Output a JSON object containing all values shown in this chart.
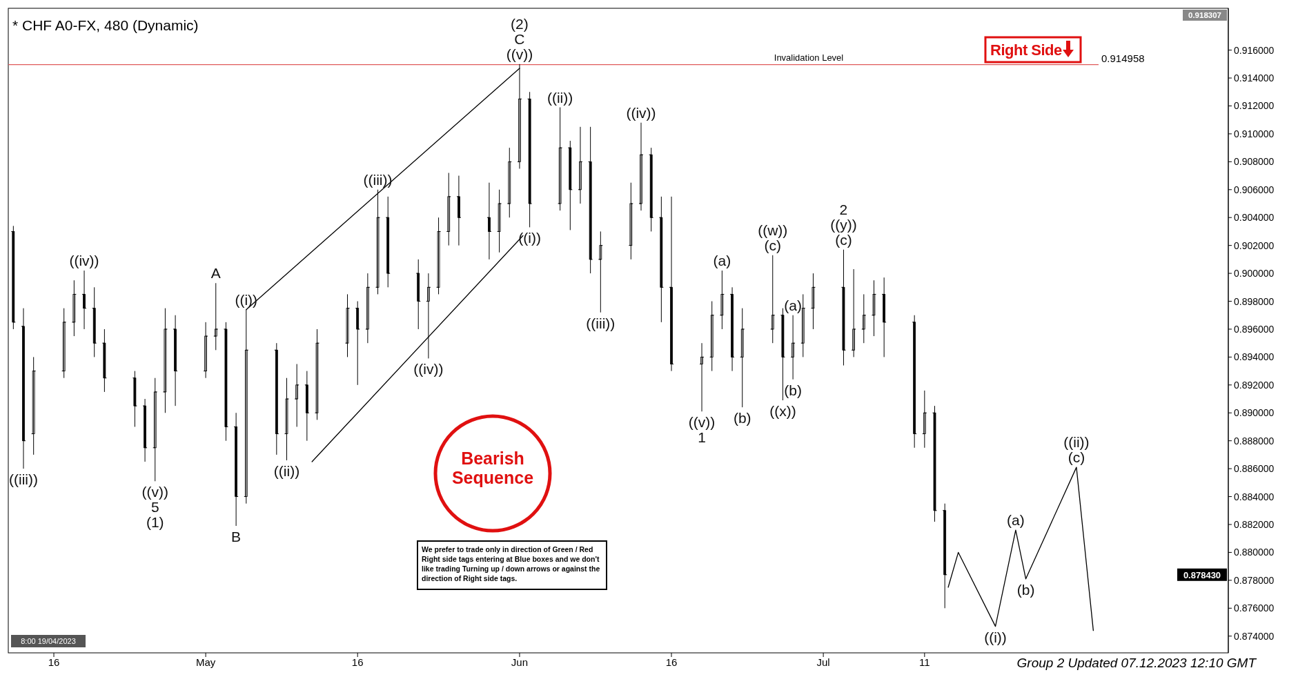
{
  "chart_data": {
    "type": "candlestick",
    "title": "* CHF A0-FX, 480 (Dynamic)",
    "x": [
      "2023-04-12",
      "2023-04-13",
      "2023-04-14",
      "2023-04-17",
      "2023-04-18",
      "2023-04-19",
      "2023-04-20",
      "2023-04-21",
      "2023-04-24",
      "2023-04-25",
      "2023-04-26",
      "2023-04-27",
      "2023-04-28",
      "2023-05-01",
      "2023-05-02",
      "2023-05-03",
      "2023-05-04",
      "2023-05-05",
      "2023-05-08",
      "2023-05-09",
      "2023-05-10",
      "2023-05-11",
      "2023-05-12",
      "2023-05-15",
      "2023-05-16",
      "2023-05-17",
      "2023-05-18",
      "2023-05-19",
      "2023-05-22",
      "2023-05-23",
      "2023-05-24",
      "2023-05-25",
      "2023-05-26",
      "2023-05-29",
      "2023-05-30",
      "2023-05-31",
      "2023-06-01",
      "2023-06-02",
      "2023-06-05",
      "2023-06-06",
      "2023-06-07",
      "2023-06-08",
      "2023-06-09",
      "2023-06-12",
      "2023-06-13",
      "2023-06-14",
      "2023-06-15",
      "2023-06-16",
      "2023-06-19",
      "2023-06-20",
      "2023-06-21",
      "2023-06-22",
      "2023-06-23",
      "2023-06-26",
      "2023-06-27",
      "2023-06-28",
      "2023-06-29",
      "2023-06-30",
      "2023-07-03",
      "2023-07-04",
      "2023-07-05",
      "2023-07-06",
      "2023-07-07",
      "2023-07-10",
      "2023-07-11",
      "2023-07-12",
      "2023-07-13"
    ],
    "ohlc": [
      [
        0.903,
        0.9034,
        0.896,
        0.8965
      ],
      [
        0.8962,
        0.8975,
        0.886,
        0.888
      ],
      [
        0.8885,
        0.894,
        0.887,
        0.893
      ],
      [
        0.893,
        0.8975,
        0.8925,
        0.8965
      ],
      [
        0.8965,
        0.8995,
        0.8955,
        0.8985
      ],
      [
        0.8985,
        0.9002,
        0.896,
        0.8975
      ],
      [
        0.8975,
        0.899,
        0.894,
        0.895
      ],
      [
        0.895,
        0.896,
        0.8915,
        0.8925
      ],
      [
        0.8925,
        0.893,
        0.889,
        0.8905
      ],
      [
        0.8905,
        0.891,
        0.8865,
        0.8875
      ],
      [
        0.8875,
        0.8925,
        0.8851,
        0.8915
      ],
      [
        0.8915,
        0.8975,
        0.89,
        0.896
      ],
      [
        0.896,
        0.897,
        0.8905,
        0.893
      ],
      [
        0.893,
        0.8965,
        0.8925,
        0.8955
      ],
      [
        0.8955,
        0.8993,
        0.8945,
        0.896
      ],
      [
        0.896,
        0.8965,
        0.888,
        0.889
      ],
      [
        0.889,
        0.89,
        0.8819,
        0.884
      ],
      [
        0.884,
        0.8974,
        0.8835,
        0.8945
      ],
      [
        0.8945,
        0.895,
        0.887,
        0.8885
      ],
      [
        0.8885,
        0.8925,
        0.8866,
        0.891
      ],
      [
        0.891,
        0.8935,
        0.889,
        0.892
      ],
      [
        0.892,
        0.893,
        0.888,
        0.89
      ],
      [
        0.89,
        0.896,
        0.8895,
        0.895
      ],
      [
        0.895,
        0.8985,
        0.894,
        0.8975
      ],
      [
        0.8975,
        0.898,
        0.892,
        0.896
      ],
      [
        0.896,
        0.9,
        0.895,
        0.899
      ],
      [
        0.899,
        0.906,
        0.8985,
        0.904
      ],
      [
        0.904,
        0.9055,
        0.899,
        0.9
      ],
      [
        0.9,
        0.901,
        0.896,
        0.898
      ],
      [
        0.898,
        0.9,
        0.8939,
        0.899
      ],
      [
        0.899,
        0.904,
        0.8985,
        0.903
      ],
      [
        0.903,
        0.9072,
        0.902,
        0.9055
      ],
      [
        0.9055,
        0.907,
        0.902,
        0.904
      ],
      [
        0.904,
        0.9065,
        0.901,
        0.903
      ],
      [
        0.903,
        0.906,
        0.9015,
        0.905
      ],
      [
        0.905,
        0.909,
        0.904,
        0.908
      ],
      [
        0.908,
        0.915,
        0.9075,
        0.9125
      ],
      [
        0.9125,
        0.913,
        0.9033,
        0.905
      ],
      [
        0.905,
        0.9119,
        0.9045,
        0.909
      ],
      [
        0.909,
        0.9095,
        0.9031,
        0.906
      ],
      [
        0.906,
        0.9105,
        0.905,
        0.908
      ],
      [
        0.908,
        0.9105,
        0.9,
        0.901
      ],
      [
        0.901,
        0.903,
        0.8972,
        0.902
      ],
      [
        0.902,
        0.9065,
        0.901,
        0.905
      ],
      [
        0.905,
        0.9108,
        0.9045,
        0.9085
      ],
      [
        0.9085,
        0.909,
        0.903,
        0.904
      ],
      [
        0.904,
        0.9055,
        0.8965,
        0.899
      ],
      [
        0.899,
        0.9055,
        0.893,
        0.8935
      ],
      [
        0.8935,
        0.895,
        0.8901,
        0.894
      ],
      [
        0.894,
        0.898,
        0.893,
        0.897
      ],
      [
        0.897,
        0.9002,
        0.896,
        0.8985
      ],
      [
        0.8985,
        0.899,
        0.893,
        0.894
      ],
      [
        0.894,
        0.8975,
        0.8904,
        0.896
      ],
      [
        0.896,
        0.9013,
        0.895,
        0.897
      ],
      [
        0.897,
        0.8975,
        0.8909,
        0.894
      ],
      [
        0.894,
        0.897,
        0.8924,
        0.895
      ],
      [
        0.895,
        0.8985,
        0.894,
        0.8975
      ],
      [
        0.8975,
        0.9,
        0.896,
        0.899
      ],
      [
        0.899,
        0.9017,
        0.8934,
        0.8945
      ],
      [
        0.8945,
        0.9003,
        0.894,
        0.896
      ],
      [
        0.896,
        0.8985,
        0.895,
        0.897
      ],
      [
        0.897,
        0.8995,
        0.8955,
        0.8985
      ],
      [
        0.8985,
        0.8997,
        0.894,
        0.8965
      ],
      [
        0.8965,
        0.897,
        0.8875,
        0.8885
      ],
      [
        0.8885,
        0.8916,
        0.8875,
        0.89
      ],
      [
        0.89,
        0.8905,
        0.8822,
        0.883
      ],
      [
        0.883,
        0.8835,
        0.876,
        0.8784
      ]
    ],
    "color": "#000000",
    "series": [
      {
        "type": "line",
        "color": "#000000",
        "x": [
          "2023-07-13T08:00",
          "2023-07-14T08:00",
          "2023-07-18",
          "2023-07-20",
          "2023-07-21",
          "2023-07-26",
          "2023-07-27T16:00"
        ],
        "values": [
          0.8775,
          0.88,
          0.8747,
          0.8816,
          0.8781,
          0.8861,
          0.8744
        ]
      },
      {
        "type": "line",
        "color": "#000000",
        "x": [
          "2023-05-05",
          "2023-06-01"
        ],
        "values": [
          0.8974,
          0.9147
        ]
      },
      {
        "type": "line",
        "color": "#000000",
        "x": [
          "2023-05-11T12:00",
          "2023-06-01T08:00"
        ],
        "values": [
          0.8865,
          0.9027
        ]
      }
    ],
    "xlim": [
      "2023-04-11T12:00",
      "2023-08-10"
    ],
    "xticks": [
      {
        "value": "2023-04-16",
        "label": "16"
      },
      {
        "value": "2023-05-01",
        "label": "May"
      },
      {
        "value": "2023-05-16",
        "label": "16"
      },
      {
        "value": "2023-06-01",
        "label": "Jun"
      },
      {
        "value": "2023-06-16",
        "label": "16"
      },
      {
        "value": "2023-07-01",
        "label": "Jul"
      },
      {
        "value": "2023-07-11",
        "label": "11"
      }
    ],
    "ylim": [
      0.8728,
      0.9188
    ],
    "yticks": [
      {
        "value": 0.874,
        "label": "0.874000"
      },
      {
        "value": 0.876,
        "label": "0.876000"
      },
      {
        "value": 0.878,
        "label": "0.878000"
      },
      {
        "value": 0.88,
        "label": "0.880000"
      },
      {
        "value": 0.882,
        "label": "0.882000"
      },
      {
        "value": 0.884,
        "label": "0.884000"
      },
      {
        "value": 0.886,
        "label": "0.886000"
      },
      {
        "value": 0.888,
        "label": "0.888000"
      },
      {
        "value": 0.89,
        "label": "0.890000"
      },
      {
        "value": 0.892,
        "label": "0.892000"
      },
      {
        "value": 0.894,
        "label": "0.894000"
      },
      {
        "value": 0.896,
        "label": "0.896000"
      },
      {
        "value": 0.898,
        "label": "0.898000"
      },
      {
        "value": 0.9,
        "label": "0.900000"
      },
      {
        "value": 0.902,
        "label": "0.902000"
      },
      {
        "value": 0.904,
        "label": "0.904000"
      },
      {
        "value": 0.906,
        "label": "0.906000"
      },
      {
        "value": 0.908,
        "label": "0.908000"
      },
      {
        "value": 0.91,
        "label": "0.910000"
      },
      {
        "value": 0.912,
        "label": "0.912000"
      },
      {
        "value": 0.914,
        "label": "0.914000"
      },
      {
        "value": 0.916,
        "label": "0.916000"
      }
    ],
    "ref_lines": [
      {
        "axis": "y",
        "value": 0.914958,
        "label": "Invalidation Level",
        "color": "#e05a5a"
      }
    ],
    "annotations": [
      "Right Side",
      "Bearish Sequence",
      "We prefer to trade only in direction of Green / Red Right side tags entering at Blue boxes and we don't like trading Turning up / down arrows or against the direction of Right side tags.",
      "Group 2 Updated 07.12.2023 12:10 GMT",
      "8:00 19/04/2023",
      "0.918307",
      "0.878430",
      "0.914958",
      {
        "text": "((iii))",
        "x": "2023-04-13",
        "y": 0.886
      },
      {
        "text": "((iv))",
        "x": "2023-04-19",
        "y": 0.9002
      },
      {
        "text": "((v))",
        "x": "2023-04-26",
        "y": 0.8851
      },
      {
        "text": "5",
        "x": "2023-04-26",
        "y": 0.8851
      },
      {
        "text": "(1)",
        "x": "2023-04-26",
        "y": 0.8851
      },
      {
        "text": "A",
        "x": "2023-05-02",
        "y": 0.8993
      },
      {
        "text": "B",
        "x": "2023-05-04",
        "y": 0.8819
      },
      {
        "text": "((i))",
        "x": "2023-05-05",
        "y": 0.8974
      },
      {
        "text": "((ii))",
        "x": "2023-05-09",
        "y": 0.8866
      },
      {
        "text": "((iii))",
        "x": "2023-05-18",
        "y": 0.906
      },
      {
        "text": "((iv))",
        "x": "2023-05-23",
        "y": 0.8939
      },
      {
        "text": "(2)",
        "x": "2023-06-01",
        "y": 0.915
      },
      {
        "text": "C",
        "x": "2023-06-01",
        "y": 0.915
      },
      {
        "text": "((v))",
        "x": "2023-06-01",
        "y": 0.915
      },
      {
        "text": "((i))",
        "x": "2023-06-02",
        "y": 0.9033
      },
      {
        "text": "((ii))",
        "x": "2023-06-05",
        "y": 0.9119
      },
      {
        "text": "((iii))",
        "x": "2023-06-09",
        "y": 0.8972
      },
      {
        "text": "((iv))",
        "x": "2023-06-13",
        "y": 0.9108
      },
      {
        "text": "((v))",
        "x": "2023-06-19",
        "y": 0.8901
      },
      {
        "text": "1",
        "x": "2023-06-19",
        "y": 0.8901
      },
      {
        "text": "(a)",
        "x": "2023-06-21",
        "y": 0.9002
      },
      {
        "text": "(b)",
        "x": "2023-06-23",
        "y": 0.8904
      },
      {
        "text": "((w))",
        "x": "2023-06-26",
        "y": 0.9013
      },
      {
        "text": "(c)",
        "x": "2023-06-26",
        "y": 0.9013
      },
      {
        "text": "((x))",
        "x": "2023-06-27",
        "y": 0.8909
      },
      {
        "text": "(a)",
        "x": "2023-06-28",
        "y": 0.897
      },
      {
        "text": "(b)",
        "x": "2023-06-28",
        "y": 0.8924
      },
      {
        "text": "2",
        "x": "2023-07-03",
        "y": 0.9017
      },
      {
        "text": "((y))",
        "x": "2023-07-03",
        "y": 0.9017
      },
      {
        "text": "(c)",
        "x": "2023-07-03",
        "y": 0.9017
      },
      {
        "text": "((i))",
        "x": "2023-07-18",
        "y": 0.8747
      },
      {
        "text": "(a)",
        "x": "2023-07-20",
        "y": 0.8816
      },
      {
        "text": "(b)",
        "x": "2023-07-21",
        "y": 0.8781
      },
      {
        "text": "((ii))",
        "x": "2023-07-26",
        "y": 0.8861
      },
      {
        "text": "(c)",
        "x": "2023-07-26",
        "y": 0.8861
      }
    ]
  }
}
